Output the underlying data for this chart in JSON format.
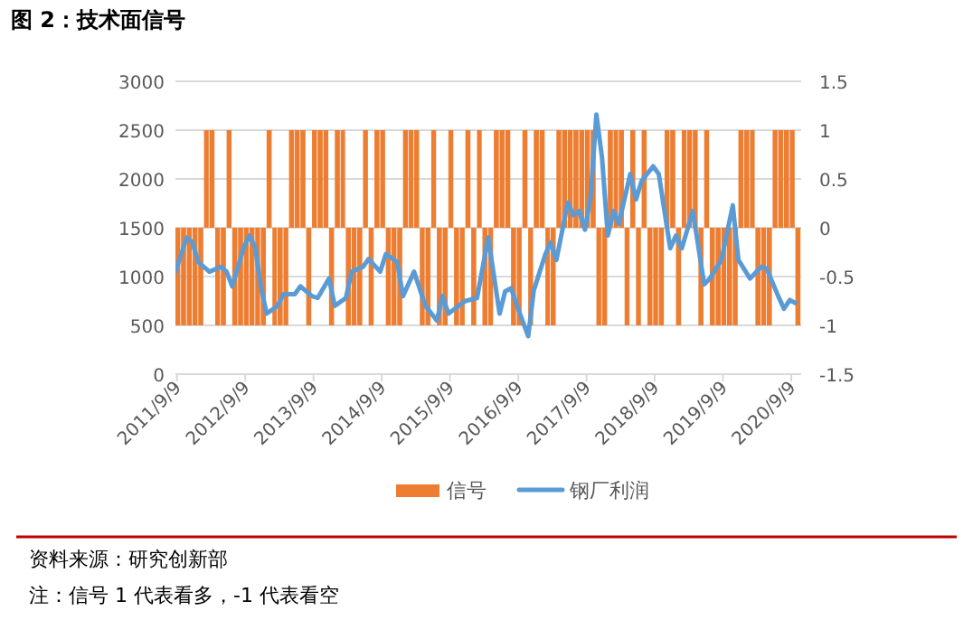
{
  "chart_data": {
    "type": "line",
    "title": "图 2：技术面信号",
    "annotations": [
      "资料来源：研究创新部",
      "注：信号 1 代表看多，-1 代表看空"
    ],
    "xlim": [
      "2011-09-01",
      "2020-11-01"
    ],
    "xticks": [
      {
        "value": "2011-09-09",
        "label": "2011/9/9"
      },
      {
        "value": "2012-09-09",
        "label": "2012/9/9"
      },
      {
        "value": "2013-09-09",
        "label": "2013/9/9"
      },
      {
        "value": "2014-09-09",
        "label": "2014/9/9"
      },
      {
        "value": "2015-09-09",
        "label": "2015/9/9"
      },
      {
        "value": "2016-09-09",
        "label": "2016/9/9"
      },
      {
        "value": "2017-09-09",
        "label": "2017/9/9"
      },
      {
        "value": "2018-09-09",
        "label": "2018/9/9"
      },
      {
        "value": "2019-09-09",
        "label": "2019/9/9"
      },
      {
        "value": "2020-09-09",
        "label": "2020/9/9"
      }
    ],
    "ylim": [
      0,
      3000
    ],
    "yticks": [
      0,
      500,
      1000,
      1500,
      2000,
      2500,
      3000
    ],
    "y2lim": [
      -1.5,
      1.5
    ],
    "y2ticks": [
      -1.5,
      -1,
      -0.5,
      0,
      0.5,
      1,
      1.5
    ],
    "grid": "y",
    "legend": "bottom",
    "series": [
      {
        "name": "信号",
        "type": "bar",
        "axis": "y2",
        "color": "#ed7d31",
        "x": [
          "2011-09",
          "2011-10",
          "2011-11",
          "2011-12",
          "2012-01",
          "2012-02",
          "2012-03",
          "2012-04",
          "2012-05",
          "2012-06",
          "2012-07",
          "2012-08",
          "2012-09",
          "2012-10",
          "2012-11",
          "2012-12",
          "2013-01",
          "2013-02",
          "2013-03",
          "2013-04",
          "2013-05",
          "2013-06",
          "2013-07",
          "2013-08",
          "2013-09",
          "2013-10",
          "2013-11",
          "2013-12",
          "2014-01",
          "2014-02",
          "2014-03",
          "2014-04",
          "2014-05",
          "2014-06",
          "2014-07",
          "2014-08",
          "2014-09",
          "2014-10",
          "2014-11",
          "2014-12",
          "2015-01",
          "2015-02",
          "2015-03",
          "2015-04",
          "2015-05",
          "2015-06",
          "2015-07",
          "2015-08",
          "2015-09",
          "2015-10",
          "2015-11",
          "2015-12",
          "2016-01",
          "2016-02",
          "2016-03",
          "2016-04",
          "2016-05",
          "2016-06",
          "2016-07",
          "2016-08",
          "2016-09",
          "2016-10",
          "2016-11",
          "2016-12",
          "2017-01",
          "2017-02",
          "2017-03",
          "2017-04",
          "2017-05",
          "2017-06",
          "2017-07",
          "2017-08",
          "2017-09",
          "2017-10",
          "2017-11",
          "2017-12",
          "2018-01",
          "2018-02",
          "2018-03",
          "2018-04",
          "2018-05",
          "2018-06",
          "2018-07",
          "2018-08",
          "2018-09",
          "2018-10",
          "2018-11",
          "2018-12",
          "2019-01",
          "2019-02",
          "2019-03",
          "2019-04",
          "2019-05",
          "2019-06",
          "2019-07",
          "2019-08",
          "2019-09",
          "2019-10",
          "2019-11",
          "2019-12",
          "2020-01",
          "2020-02",
          "2020-03",
          "2020-04",
          "2020-05",
          "2020-06",
          "2020-07",
          "2020-08",
          "2020-09",
          "2020-10"
        ],
        "values": [
          -1,
          -1,
          -1,
          -1,
          -1,
          1,
          1,
          -1,
          -1,
          1,
          -1,
          -1,
          -1,
          -1,
          -1,
          -1,
          1,
          -1,
          -1,
          -1,
          1,
          1,
          1,
          -1,
          1,
          1,
          1,
          -1,
          1,
          1,
          -1,
          -1,
          -1,
          1,
          -1,
          1,
          1,
          -1,
          -1,
          -1,
          1,
          1,
          1,
          -1,
          -1,
          1,
          -1,
          -1,
          1,
          -1,
          -1,
          1,
          -1,
          1,
          -1,
          -1,
          1,
          1,
          1,
          -1,
          -1,
          1,
          -1,
          1,
          1,
          -1,
          -1,
          1,
          1,
          1,
          1,
          1,
          1,
          1,
          -1,
          -1,
          1,
          1,
          1,
          -1,
          1,
          -1,
          1,
          -1,
          -1,
          -1,
          1,
          1,
          -1,
          1,
          1,
          1,
          -1,
          1,
          -1,
          -1,
          -1,
          -1,
          -1,
          1,
          1,
          1,
          -1,
          -1,
          -1,
          1,
          1,
          1,
          1,
          -1
        ]
      },
      {
        "name": "钢厂利润",
        "color": "#5b9bd5",
        "x": [
          "2011-09",
          "2011-11",
          "2011-12",
          "2012-01",
          "2012-03",
          "2012-05",
          "2012-06",
          "2012-07",
          "2012-09",
          "2012-10",
          "2012-11",
          "2012-12",
          "2013-01",
          "2013-03",
          "2013-04",
          "2013-06",
          "2013-07",
          "2013-09",
          "2013-10",
          "2013-12",
          "2014-01",
          "2014-03",
          "2014-04",
          "2014-06",
          "2014-07",
          "2014-09",
          "2014-10",
          "2014-12",
          "2015-01",
          "2015-03",
          "2015-05",
          "2015-07",
          "2015-08",
          "2015-09",
          "2015-12",
          "2016-02",
          "2016-04",
          "2016-06",
          "2016-07",
          "2016-08",
          "2016-10",
          "2016-11",
          "2016-12",
          "2017-02",
          "2017-03",
          "2017-04",
          "2017-06",
          "2017-07",
          "2017-08",
          "2017-09",
          "2017-10",
          "2017-11",
          "2017-12",
          "2018-01",
          "2018-02",
          "2018-03",
          "2018-05",
          "2018-06",
          "2018-07",
          "2018-09",
          "2018-10",
          "2018-12",
          "2019-01",
          "2019-02",
          "2019-04",
          "2019-06",
          "2019-07",
          "2019-09",
          "2019-11",
          "2019-12",
          "2020-02",
          "2020-04",
          "2020-05",
          "2020-07",
          "2020-08",
          "2020-09",
          "2020-10"
        ],
        "values": [
          1050,
          1400,
          1350,
          1150,
          1050,
          1100,
          1050,
          900,
          1300,
          1420,
          1300,
          900,
          620,
          700,
          820,
          820,
          900,
          800,
          780,
          980,
          700,
          780,
          1050,
          1100,
          1180,
          1050,
          1230,
          1150,
          800,
          1050,
          700,
          550,
          800,
          620,
          750,
          780,
          1400,
          620,
          850,
          880,
          550,
          390,
          860,
          1230,
          1350,
          1170,
          1760,
          1630,
          1670,
          1480,
          1820,
          2660,
          2220,
          1420,
          1670,
          1540,
          2050,
          1790,
          1980,
          2130,
          2050,
          1290,
          1420,
          1290,
          1670,
          920,
          980,
          1170,
          1730,
          1170,
          980,
          1100,
          1080,
          800,
          670,
          760,
          730
        ]
      }
    ]
  }
}
